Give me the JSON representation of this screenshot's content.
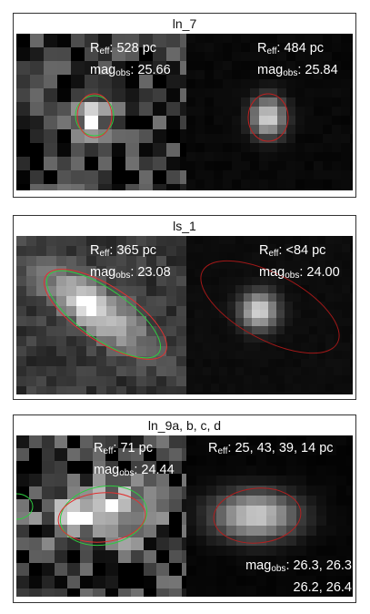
{
  "panels": [
    {
      "title": "ln_7",
      "left": [
        {
          "sym": "R",
          "sub": "eff",
          "text": ": 528 pc"
        },
        {
          "sym": "mag",
          "sub": "obs",
          "text": ": 25.66"
        }
      ],
      "right": [
        {
          "sym": "R",
          "sub": "eff",
          "text": ": 484 pc"
        },
        {
          "sym": "mag",
          "sub": "obs",
          "text": ": 25.84"
        }
      ]
    },
    {
      "title": "ls_1",
      "left": [
        {
          "sym": "R",
          "sub": "eff",
          "text": ": 365 pc"
        },
        {
          "sym": "mag",
          "sub": "obs",
          "text": ": 23.08"
        }
      ],
      "right": [
        {
          "sym": "R",
          "sub": "eff",
          "text": ": <84 pc"
        },
        {
          "sym": "mag",
          "sub": "obs",
          "text": ": 24.00"
        }
      ]
    },
    {
      "title": "ln_9a, b, c, d",
      "left": [
        {
          "sym": "R",
          "sub": "eff",
          "text": ": 71 pc"
        },
        {
          "sym": "mag",
          "sub": "obs",
          "text": ": 24.44"
        }
      ],
      "right": [
        {
          "sym": "R",
          "sub": "eff",
          "text": ": 25, 43, 39, 14 pc"
        }
      ],
      "right_bottom": [
        {
          "sym": "mag",
          "sub": "obs",
          "text": ": 26.3, 26.3"
        },
        {
          "text": "26.2, 26.4"
        }
      ]
    }
  ]
}
